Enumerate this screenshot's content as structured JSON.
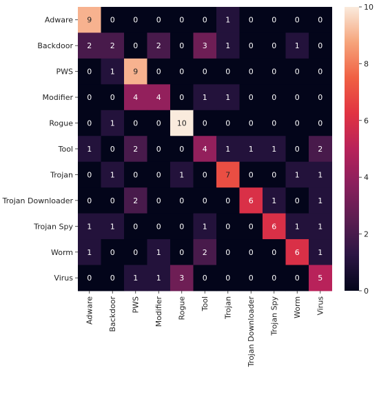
{
  "chart_data": {
    "type": "heatmap",
    "title": "",
    "xlabel": "",
    "ylabel": "",
    "row_labels": [
      "Adware",
      "Backdoor",
      "PWS",
      "Modifier",
      "Rogue",
      "Tool",
      "Trojan",
      "Trojan Downloader",
      "Trojan Spy",
      "Worm",
      "Virus"
    ],
    "col_labels": [
      "Adware",
      "Backdoor",
      "PWS",
      "Modifier",
      "Rogue",
      "Tool",
      "Trojan",
      "Trojan Downloader",
      "Trojan Spy",
      "Worm",
      "Virus"
    ],
    "values": [
      [
        9,
        0,
        0,
        0,
        0,
        0,
        1,
        0,
        0,
        0,
        0
      ],
      [
        2,
        2,
        0,
        2,
        0,
        3,
        1,
        0,
        0,
        1,
        0
      ],
      [
        0,
        1,
        9,
        0,
        0,
        0,
        0,
        0,
        0,
        0,
        0
      ],
      [
        0,
        0,
        4,
        4,
        0,
        1,
        1,
        0,
        0,
        0,
        0
      ],
      [
        0,
        1,
        0,
        0,
        10,
        0,
        0,
        0,
        0,
        0,
        0
      ],
      [
        1,
        0,
        2,
        0,
        0,
        4,
        1,
        1,
        1,
        0,
        2
      ],
      [
        0,
        1,
        0,
        0,
        1,
        0,
        7,
        0,
        0,
        1,
        1
      ],
      [
        0,
        0,
        2,
        0,
        0,
        0,
        0,
        6,
        1,
        0,
        1
      ],
      [
        1,
        1,
        0,
        0,
        0,
        1,
        0,
        0,
        6,
        1,
        1
      ],
      [
        1,
        0,
        0,
        1,
        0,
        2,
        0,
        0,
        0,
        6,
        1
      ],
      [
        0,
        0,
        1,
        1,
        3,
        0,
        0,
        0,
        0,
        0,
        5
      ]
    ],
    "colorbar": {
      "min": 0,
      "max": 10,
      "ticks": [
        "0",
        "2",
        "4",
        "6",
        "8",
        "10"
      ]
    },
    "colormap": [
      "#03051a",
      "#2b1543",
      "#5b1e51",
      "#8a1f5c",
      "#b8225a",
      "#e13342",
      "#f06043",
      "#f6a47b",
      "#faebdd"
    ],
    "label_color_dark": "#262626",
    "label_color_light": "#ffffff"
  }
}
